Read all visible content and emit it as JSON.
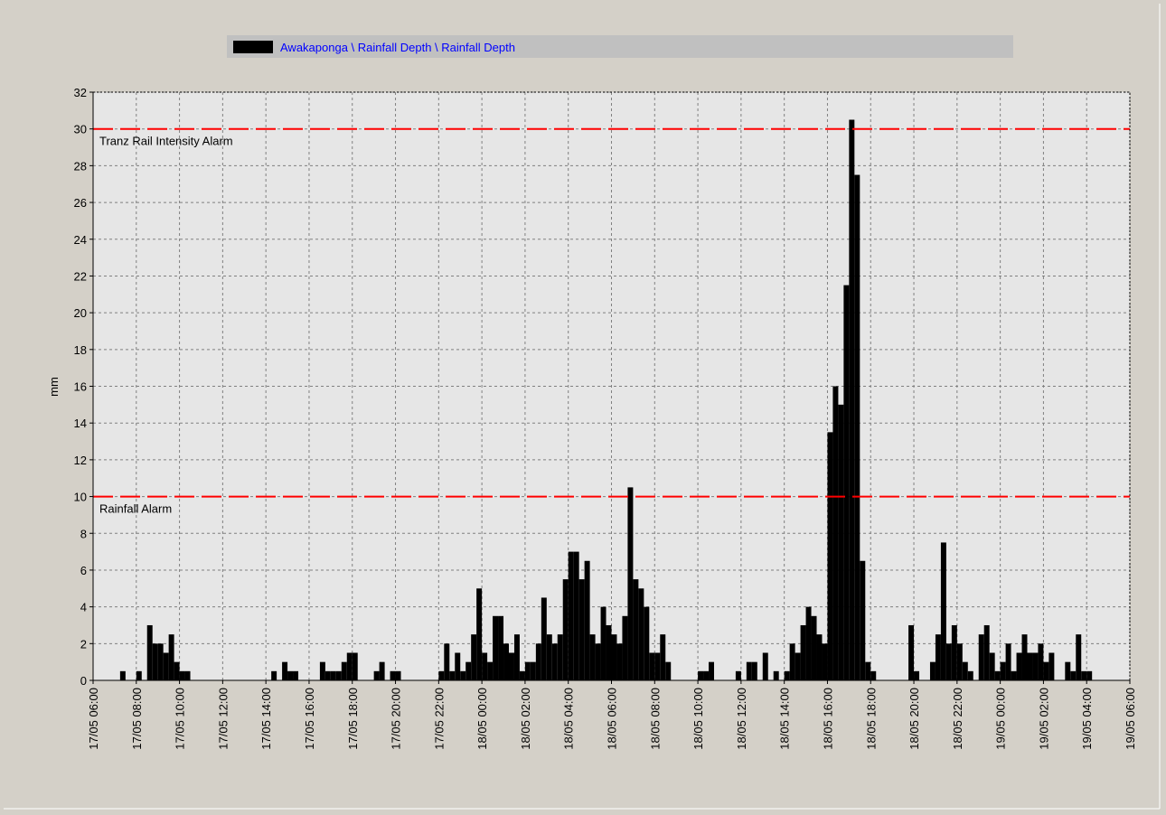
{
  "chart_data": {
    "type": "bar",
    "legend": "top",
    "grid": true,
    "y_label": "mm",
    "series": [
      {
        "name": "Awakaponga \\ Rainfall Depth \\ Rainfall Depth",
        "color": "#000000",
        "values": [
          0,
          0,
          0,
          0,
          0,
          0.5,
          0,
          0,
          0.5,
          0,
          3,
          2,
          2,
          1.5,
          2.5,
          1,
          0.5,
          0.5,
          0,
          0,
          0,
          0,
          0,
          0,
          0,
          0,
          0,
          0,
          0,
          0,
          0,
          0,
          0,
          0.5,
          0,
          1,
          0.5,
          0.5,
          0,
          0,
          0,
          0,
          1,
          0.5,
          0.5,
          0.5,
          1,
          1.5,
          1.5,
          0,
          0,
          0,
          0.5,
          1,
          0,
          0.5,
          0.5,
          0,
          0,
          0,
          0,
          0,
          0,
          0,
          0.5,
          2,
          0.5,
          1.5,
          0.5,
          1,
          2.5,
          5,
          1.5,
          1,
          3.5,
          3.5,
          2,
          1.5,
          2.5,
          0.5,
          1,
          1,
          2,
          4.5,
          2.5,
          2,
          2.5,
          5.5,
          7,
          7,
          5.5,
          6.5,
          2.5,
          2,
          4,
          3,
          2.5,
          2,
          3.5,
          10.5,
          5.5,
          5,
          4,
          1.5,
          1.5,
          2.5,
          1,
          0,
          0,
          0,
          0,
          0,
          0.5,
          0.5,
          1,
          0,
          0,
          0,
          0,
          0.5,
          0,
          1,
          1,
          0,
          1.5,
          0,
          0.5,
          0,
          0.5,
          2,
          1.5,
          3,
          4,
          3.5,
          2.5,
          2,
          13.5,
          16,
          15,
          21.5,
          30.5,
          27.5,
          6.5,
          1,
          0.5,
          0,
          0,
          0,
          0,
          0,
          0,
          3,
          0.5,
          0,
          0,
          1,
          2.5,
          7.5,
          2,
          3,
          2,
          1,
          0.5,
          0,
          2.5,
          3,
          1.5,
          0.5,
          1,
          2,
          0.5,
          1.5,
          2.5,
          1.5,
          1.5,
          2,
          1,
          1.5,
          0,
          0,
          1,
          0.5,
          2.5,
          0.5,
          0.5,
          0,
          0,
          0,
          0,
          0,
          0,
          0
        ]
      }
    ],
    "x": [
      "17/05 06:00",
      "17/05 06:15",
      "17/05 06:30",
      "17/05 06:45",
      "17/05 07:00",
      "17/05 07:15",
      "17/05 07:30",
      "17/05 07:45",
      "17/05 08:00",
      "17/05 08:15",
      "17/05 08:30",
      "17/05 08:45",
      "17/05 09:00",
      "17/05 09:15",
      "17/05 09:30",
      "17/05 09:45",
      "17/05 10:00",
      "17/05 10:15",
      "17/05 10:30",
      "17/05 10:45",
      "17/05 11:00",
      "17/05 11:15",
      "17/05 11:30",
      "17/05 11:45",
      "17/05 12:00",
      "17/05 12:15",
      "17/05 12:30",
      "17/05 12:45",
      "17/05 13:00",
      "17/05 13:15",
      "17/05 13:30",
      "17/05 13:45",
      "17/05 14:00",
      "17/05 14:15",
      "17/05 14:30",
      "17/05 14:45",
      "17/05 15:00",
      "17/05 15:15",
      "17/05 15:30",
      "17/05 15:45",
      "17/05 16:00",
      "17/05 16:15",
      "17/05 16:30",
      "17/05 16:45",
      "17/05 17:00",
      "17/05 17:15",
      "17/05 17:30",
      "17/05 17:45",
      "17/05 18:00",
      "17/05 18:15",
      "17/05 18:30",
      "17/05 18:45",
      "17/05 19:00",
      "17/05 19:15",
      "17/05 19:30",
      "17/05 19:45",
      "17/05 20:00",
      "17/05 20:15",
      "17/05 20:30",
      "17/05 20:45",
      "17/05 21:00",
      "17/05 21:15",
      "17/05 21:30",
      "17/05 21:45",
      "17/05 22:00",
      "17/05 22:15",
      "17/05 22:30",
      "17/05 22:45",
      "17/05 23:00",
      "17/05 23:15",
      "17/05 23:30",
      "17/05 23:45",
      "18/05 00:00",
      "18/05 00:15",
      "18/05 00:30",
      "18/05 00:45",
      "18/05 01:00",
      "18/05 01:15",
      "18/05 01:30",
      "18/05 01:45",
      "18/05 02:00",
      "18/05 02:15",
      "18/05 02:30",
      "18/05 02:45",
      "18/05 03:00",
      "18/05 03:15",
      "18/05 03:30",
      "18/05 03:45",
      "18/05 04:00",
      "18/05 04:15",
      "18/05 04:30",
      "18/05 04:45",
      "18/05 05:00",
      "18/05 05:15",
      "18/05 05:30",
      "18/05 05:45",
      "18/05 06:00",
      "18/05 06:15",
      "18/05 06:30",
      "18/05 06:45",
      "18/05 07:00",
      "18/05 07:15",
      "18/05 07:30",
      "18/05 07:45",
      "18/05 08:00",
      "18/05 08:15",
      "18/05 08:30",
      "18/05 08:45",
      "18/05 09:00",
      "18/05 09:15",
      "18/05 09:30",
      "18/05 09:45",
      "18/05 10:00",
      "18/05 10:15",
      "18/05 10:30",
      "18/05 10:45",
      "18/05 11:00",
      "18/05 11:15",
      "18/05 11:30",
      "18/05 11:45",
      "18/05 12:00",
      "18/05 12:15",
      "18/05 12:30",
      "18/05 12:45",
      "18/05 13:00",
      "18/05 13:15",
      "18/05 13:30",
      "18/05 13:45",
      "18/05 14:00",
      "18/05 14:15",
      "18/05 14:30",
      "18/05 14:45",
      "18/05 15:00",
      "18/05 15:15",
      "18/05 15:30",
      "18/05 15:45",
      "18/05 16:00",
      "18/05 16:15",
      "18/05 16:30",
      "18/05 16:45",
      "18/05 17:00",
      "18/05 17:15",
      "18/05 17:30",
      "18/05 17:45",
      "18/05 18:00",
      "18/05 18:15",
      "18/05 18:30",
      "18/05 18:45",
      "18/05 19:00",
      "18/05 19:15",
      "18/05 19:30",
      "18/05 19:45",
      "18/05 20:00",
      "18/05 20:15",
      "18/05 20:30",
      "18/05 20:45",
      "18/05 21:00",
      "18/05 21:15",
      "18/05 21:30",
      "18/05 21:45",
      "18/05 22:00",
      "18/05 22:15",
      "18/05 22:30",
      "18/05 22:45",
      "18/05 23:00",
      "18/05 23:15",
      "18/05 23:30",
      "18/05 23:45",
      "19/05 00:00",
      "19/05 00:15",
      "19/05 00:30",
      "19/05 00:45",
      "19/05 01:00",
      "19/05 01:15",
      "19/05 01:30",
      "19/05 01:45",
      "19/05 02:00",
      "19/05 02:15",
      "19/05 02:30",
      "19/05 02:45",
      "19/05 03:00",
      "19/05 03:15",
      "19/05 03:30",
      "19/05 03:45",
      "19/05 04:00",
      "19/05 04:15",
      "19/05 04:30",
      "19/05 04:45",
      "19/05 05:00",
      "19/05 05:15",
      "19/05 05:30",
      "19/05 05:45"
    ],
    "xlim": [
      "17/05 06:00",
      "19/05 06:00"
    ],
    "xticks": [
      "17/05 06:00",
      "17/05 08:00",
      "17/05 10:00",
      "17/05 12:00",
      "17/05 14:00",
      "17/05 16:00",
      "17/05 18:00",
      "17/05 20:00",
      "17/05 22:00",
      "18/05 00:00",
      "18/05 02:00",
      "18/05 04:00",
      "18/05 06:00",
      "18/05 08:00",
      "18/05 10:00",
      "18/05 12:00",
      "18/05 14:00",
      "18/05 16:00",
      "18/05 18:00",
      "18/05 20:00",
      "18/05 22:00",
      "19/05 00:00",
      "19/05 02:00",
      "19/05 04:00",
      "19/05 06:00"
    ],
    "ylim": [
      0,
      32
    ],
    "yticks": [
      0,
      2,
      4,
      6,
      8,
      10,
      12,
      14,
      16,
      18,
      20,
      22,
      24,
      26,
      28,
      30,
      32
    ],
    "thresholds": [
      {
        "label": "Tranz Rail Intensity Alarm",
        "value": 30,
        "color": "#ff0000"
      },
      {
        "label": "Rainfall Alarm",
        "value": 10,
        "color": "#ff0000"
      }
    ]
  }
}
